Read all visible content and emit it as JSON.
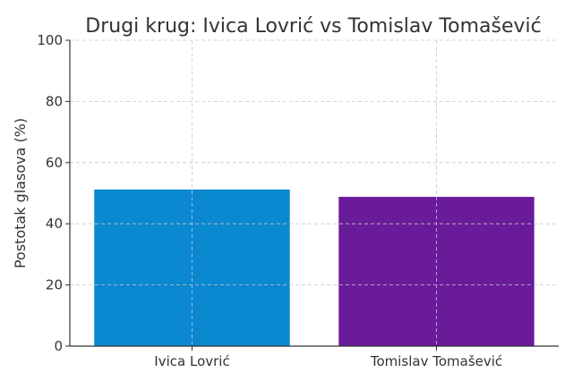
{
  "chart_data": {
    "type": "bar",
    "title": "Drugi krug: Ivica Lovrić vs Tomislav Tomašević",
    "xlabel": "",
    "ylabel": "Postotak glasova (%)",
    "categories": [
      "Ivica Lovrić",
      "Tomislav Tomašević"
    ],
    "values": [
      51.2,
      48.8
    ],
    "colors": [
      "#0a88d0",
      "#6a1b9a"
    ],
    "ylim": [
      0,
      100
    ],
    "yticks": [
      0,
      20,
      40,
      60,
      80,
      100
    ],
    "grid": true,
    "legend": "none"
  }
}
